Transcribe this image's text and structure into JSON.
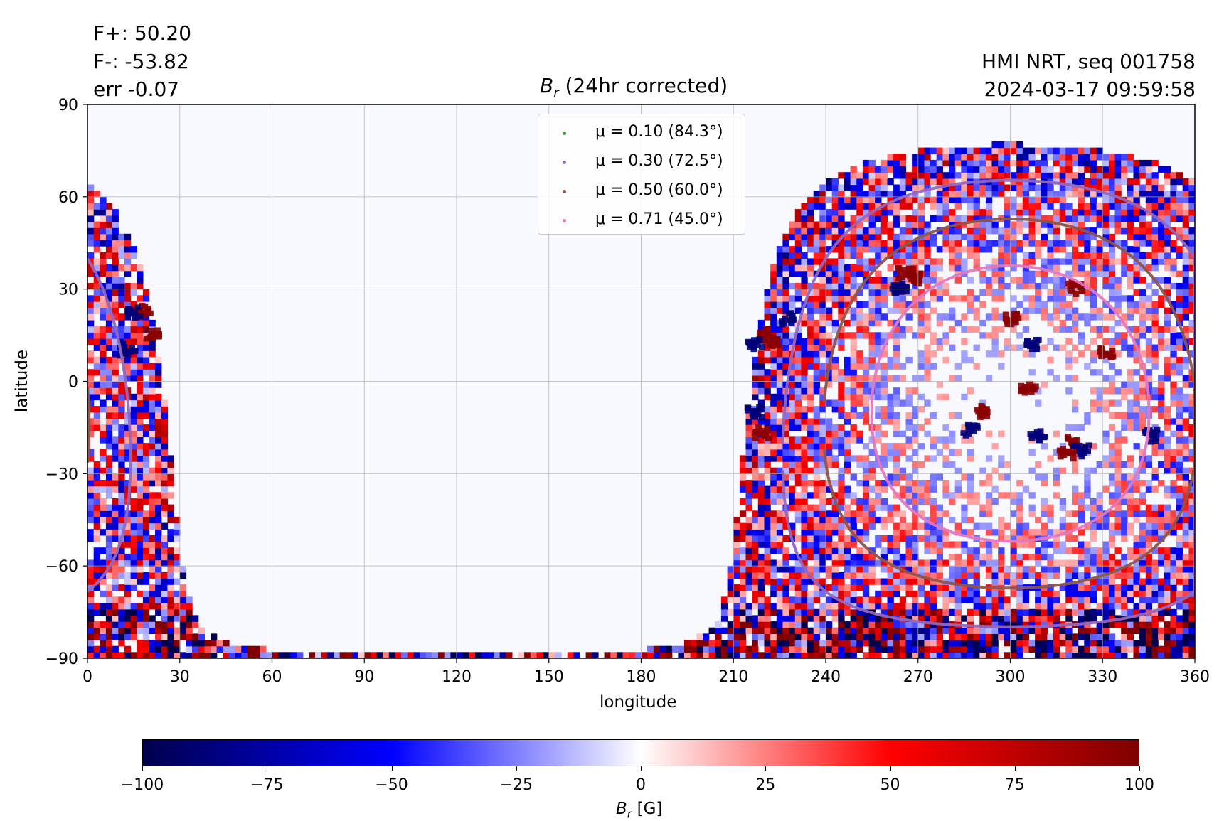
{
  "header": {
    "flux_pos": "F+: 50.20",
    "flux_neg": "F-: -53.82",
    "err": "err -0.07",
    "instrument": "HMI NRT, seq 001758",
    "timestamp": "2024-03-17 09:59:58"
  },
  "chart_data": {
    "type": "heatmap",
    "title_symbol": "B",
    "title_sub": "r",
    "title_rest": " (24hr corrected)",
    "xlabel": "longitude",
    "ylabel": "latitude",
    "xlim": [
      0,
      360
    ],
    "ylim": [
      -90,
      90
    ],
    "xticks": [
      "0",
      "30",
      "60",
      "90",
      "120",
      "150",
      "180",
      "210",
      "240",
      "270",
      "300",
      "330",
      "360"
    ],
    "yticks": [
      "90",
      "60",
      "30",
      "0",
      "−30",
      "−60",
      "−90"
    ],
    "grid": true,
    "disk_center": {
      "lon": 300,
      "lat": -7.2
    },
    "legend_position": "top-center",
    "legend": [
      {
        "label": "μ = 0.10 (84.3°)",
        "mu": 0.1,
        "angle_deg": 84.3,
        "color": "#2ca02c"
      },
      {
        "label": "μ = 0.30 (72.5°)",
        "mu": 0.3,
        "angle_deg": 72.5,
        "color": "#9467bd"
      },
      {
        "label": "μ = 0.50 (60.0°)",
        "mu": 0.5,
        "angle_deg": 60.0,
        "color": "#8c564b"
      },
      {
        "label": "μ = 0.71 (45.0°)",
        "mu": 0.71,
        "angle_deg": 45.0,
        "color": "#e377c2"
      }
    ],
    "active_regions": [
      {
        "lon": 218,
        "lat": 15,
        "sign": 1
      },
      {
        "lon": 221,
        "lat": 13,
        "sign": 1
      },
      {
        "lon": 216,
        "lat": 12,
        "sign": -1
      },
      {
        "lon": 216,
        "lat": -10,
        "sign": -1
      },
      {
        "lon": 218,
        "lat": -17,
        "sign": 1
      },
      {
        "lon": 226,
        "lat": 20,
        "sign": -1
      },
      {
        "lon": 17,
        "lat": 23,
        "sign": 1
      },
      {
        "lon": 20,
        "lat": 15,
        "sign": 1
      },
      {
        "lon": 12,
        "lat": 10,
        "sign": -1
      },
      {
        "lon": 14,
        "lat": 22,
        "sign": -1
      },
      {
        "lon": 300,
        "lat": 20,
        "sign": 1
      },
      {
        "lon": 306,
        "lat": 12,
        "sign": -1
      },
      {
        "lon": 320,
        "lat": 30,
        "sign": 1
      },
      {
        "lon": 330,
        "lat": 9,
        "sign": 1
      },
      {
        "lon": 290,
        "lat": -10,
        "sign": 1
      },
      {
        "lon": 286,
        "lat": -16,
        "sign": -1
      },
      {
        "lon": 308,
        "lat": -18,
        "sign": -1
      },
      {
        "lon": 319,
        "lat": -20,
        "sign": 1
      },
      {
        "lon": 322,
        "lat": -23,
        "sign": -1
      },
      {
        "lon": 317,
        "lat": -24,
        "sign": 1
      },
      {
        "lon": 265,
        "lat": 35,
        "sign": 1
      },
      {
        "lon": 263,
        "lat": 30,
        "sign": -1
      },
      {
        "lon": 305,
        "lat": -3,
        "sign": 1
      },
      {
        "lon": 345,
        "lat": -18,
        "sign": -1
      },
      {
        "lon": 268,
        "lat": 33,
        "sign": 1
      }
    ],
    "colorbar": {
      "label_symbol": "B",
      "label_sub": "r",
      "label_rest": " [G]",
      "ticks": [
        "−100",
        "−75",
        "−50",
        "−25",
        "0",
        "25",
        "50",
        "75",
        "100"
      ],
      "colors": [
        "#00004c",
        "#0000ff",
        "#ffffff",
        "#ff0000",
        "#7f0000"
      ]
    }
  }
}
